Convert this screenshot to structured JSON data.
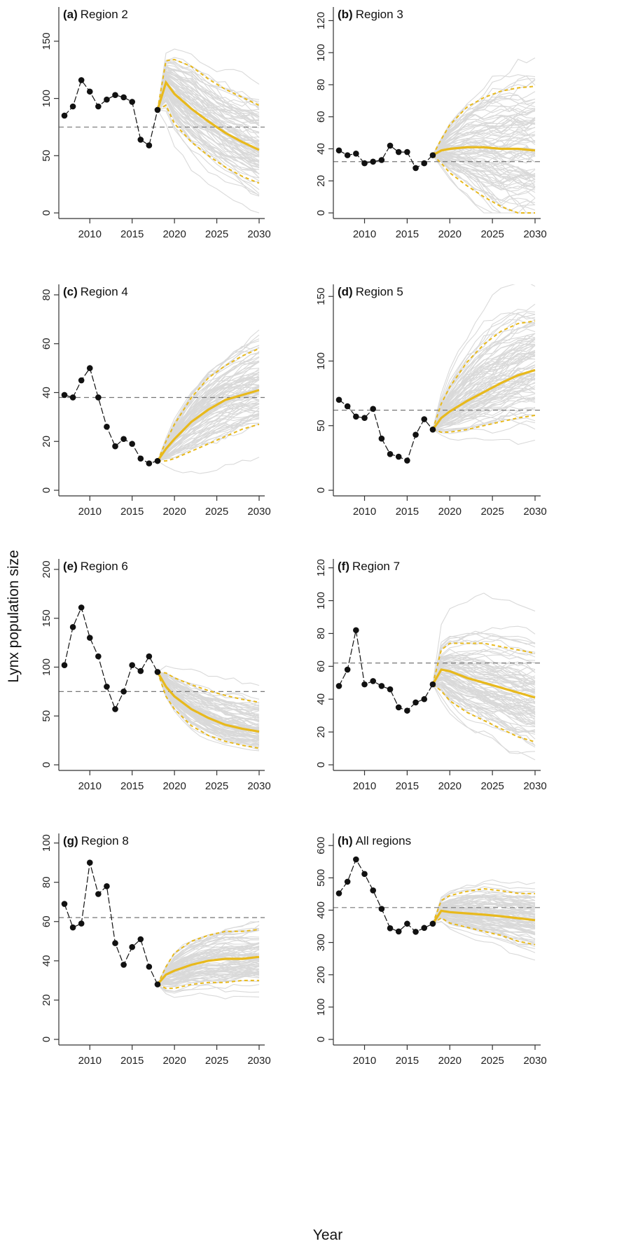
{
  "figure": {
    "ylabel": "Lynx population size",
    "xlabel": "Year"
  },
  "colors": {
    "observed": "#111111",
    "simulation": "#d9d9d9",
    "median": "#e8b91c",
    "threshold": "#777777"
  },
  "chart_data": [
    {
      "type": "line",
      "letter": "(a)",
      "title": "Region 2",
      "xlim": [
        2007,
        2030
      ],
      "xticks": [
        2010,
        2015,
        2020,
        2025,
        2030
      ],
      "ylim": [
        0,
        175
      ],
      "yticks": [
        0,
        50,
        100,
        150
      ],
      "threshold": 75,
      "series": [
        {
          "name": "",
          "x": [
            2007,
            2008,
            2009,
            2010,
            2011,
            2012,
            2013,
            2014,
            2015,
            2016,
            2017,
            2018
          ],
          "values": [
            85,
            93,
            116,
            106,
            93,
            99,
            103,
            101,
            97,
            64,
            59,
            90
          ]
        },
        {
          "name": "",
          "x": [
            2018,
            2019,
            2020,
            2022,
            2024,
            2026,
            2028,
            2030
          ],
          "values": [
            90,
            114,
            104,
            91,
            80,
            70,
            62,
            55
          ]
        },
        {
          "name": "",
          "x": [
            2018,
            2019,
            2020,
            2022,
            2024,
            2026,
            2028,
            2030
          ],
          "values": [
            90,
            133,
            134,
            128,
            117,
            108,
            101,
            94
          ]
        },
        {
          "name": "",
          "x": [
            2018,
            2019,
            2020,
            2022,
            2024,
            2026,
            2028,
            2030
          ],
          "values": [
            90,
            94,
            78,
            62,
            50,
            40,
            32,
            26
          ]
        }
      ]
    },
    {
      "type": "line",
      "letter": "(b)",
      "title": "Region 3",
      "xlim": [
        2007,
        2030
      ],
      "xticks": [
        2010,
        2015,
        2020,
        2025,
        2030
      ],
      "ylim": [
        0,
        125
      ],
      "yticks": [
        0,
        20,
        40,
        60,
        80,
        100,
        120
      ],
      "threshold": 32,
      "series": [
        {
          "name": "",
          "x": [
            2007,
            2008,
            2009,
            2010,
            2011,
            2012,
            2013,
            2014,
            2015,
            2016,
            2017,
            2018
          ],
          "values": [
            39,
            36,
            37,
            31,
            32,
            33,
            42,
            38,
            38,
            28,
            31,
            36
          ]
        },
        {
          "name": "",
          "x": [
            2018,
            2019,
            2020,
            2022,
            2024,
            2026,
            2028,
            2030
          ],
          "values": [
            36,
            39,
            40,
            41,
            41,
            40,
            40,
            39
          ]
        },
        {
          "name": "",
          "x": [
            2018,
            2019,
            2020,
            2022,
            2024,
            2026,
            2028,
            2030
          ],
          "values": [
            36,
            46,
            55,
            66,
            72,
            76,
            78,
            79
          ]
        },
        {
          "name": "",
          "x": [
            2018,
            2019,
            2020,
            2022,
            2024,
            2026,
            2028,
            2030
          ],
          "values": [
            36,
            31,
            25,
            17,
            10,
            4,
            0,
            0
          ]
        }
      ]
    },
    {
      "type": "line",
      "letter": "(c)",
      "title": "Region 4",
      "xlim": [
        2007,
        2030
      ],
      "xticks": [
        2010,
        2015,
        2020,
        2025,
        2030
      ],
      "ylim": [
        0,
        82
      ],
      "yticks": [
        0,
        20,
        40,
        60,
        80
      ],
      "threshold": 38,
      "series": [
        {
          "name": "",
          "x": [
            2007,
            2008,
            2009,
            2010,
            2011,
            2012,
            2013,
            2014,
            2015,
            2016,
            2017,
            2018
          ],
          "values": [
            39,
            38,
            45,
            50,
            38,
            26,
            18,
            21,
            19,
            13,
            11,
            12
          ]
        },
        {
          "name": "",
          "x": [
            2018,
            2019,
            2020,
            2022,
            2024,
            2026,
            2028,
            2030
          ],
          "values": [
            12,
            17,
            21,
            28,
            33,
            37,
            39,
            41
          ]
        },
        {
          "name": "",
          "x": [
            2018,
            2019,
            2020,
            2022,
            2024,
            2026,
            2028,
            2030
          ],
          "values": [
            12,
            20,
            27,
            38,
            46,
            51,
            55,
            58
          ]
        },
        {
          "name": "",
          "x": [
            2018,
            2019,
            2020,
            2022,
            2024,
            2026,
            2028,
            2030
          ],
          "values": [
            12,
            12,
            13,
            16,
            19,
            22,
            25,
            27
          ]
        }
      ]
    },
    {
      "type": "line",
      "letter": "(d)",
      "title": "Region 5",
      "xlim": [
        2007,
        2030
      ],
      "xticks": [
        2010,
        2015,
        2020,
        2025,
        2030
      ],
      "ylim": [
        0,
        155
      ],
      "yticks": [
        0,
        50,
        100,
        150
      ],
      "threshold": 62,
      "series": [
        {
          "name": "",
          "x": [
            2007,
            2008,
            2009,
            2010,
            2011,
            2012,
            2013,
            2014,
            2015,
            2016,
            2017,
            2018
          ],
          "values": [
            70,
            65,
            57,
            56,
            63,
            40,
            28,
            26,
            23,
            43,
            55,
            47
          ]
        },
        {
          "name": "",
          "x": [
            2018,
            2019,
            2020,
            2022,
            2024,
            2026,
            2028,
            2030
          ],
          "values": [
            47,
            56,
            61,
            69,
            76,
            83,
            89,
            93
          ]
        },
        {
          "name": "",
          "x": [
            2018,
            2019,
            2020,
            2022,
            2024,
            2026,
            2028,
            2030
          ],
          "values": [
            47,
            67,
            80,
            99,
            113,
            123,
            129,
            131
          ]
        },
        {
          "name": "",
          "x": [
            2018,
            2019,
            2020,
            2022,
            2024,
            2026,
            2028,
            2030
          ],
          "values": [
            47,
            45,
            45,
            47,
            50,
            53,
            56,
            58
          ]
        }
      ]
    },
    {
      "type": "line",
      "letter": "(e)",
      "title": "Region 6",
      "xlim": [
        2007,
        2030
      ],
      "xticks": [
        2010,
        2015,
        2020,
        2025,
        2030
      ],
      "ylim": [
        0,
        205
      ],
      "yticks": [
        0,
        50,
        100,
        150,
        200
      ],
      "threshold": 75,
      "series": [
        {
          "name": "",
          "x": [
            2007,
            2008,
            2009,
            2010,
            2011,
            2012,
            2013,
            2014,
            2015,
            2016,
            2017,
            2018
          ],
          "values": [
            102,
            141,
            161,
            130,
            111,
            80,
            57,
            75,
            102,
            96,
            111,
            95
          ]
        },
        {
          "name": "",
          "x": [
            2018,
            2019,
            2020,
            2022,
            2024,
            2026,
            2028,
            2030
          ],
          "values": [
            95,
            80,
            70,
            57,
            48,
            41,
            37,
            34
          ]
        },
        {
          "name": "",
          "x": [
            2018,
            2019,
            2020,
            2022,
            2024,
            2026,
            2028,
            2030
          ],
          "values": [
            95,
            94,
            89,
            82,
            76,
            71,
            67,
            64
          ]
        },
        {
          "name": "",
          "x": [
            2018,
            2019,
            2020,
            2022,
            2024,
            2026,
            2028,
            2030
          ],
          "values": [
            95,
            70,
            57,
            40,
            30,
            24,
            20,
            17
          ]
        }
      ]
    },
    {
      "type": "line",
      "letter": "(f)",
      "title": "Region 7",
      "xlim": [
        2007,
        2030
      ],
      "xticks": [
        2010,
        2015,
        2020,
        2025,
        2030
      ],
      "ylim": [
        0,
        122
      ],
      "yticks": [
        0,
        20,
        40,
        60,
        80,
        100,
        120
      ],
      "threshold": 62,
      "series": [
        {
          "name": "",
          "x": [
            2007,
            2008,
            2009,
            2010,
            2011,
            2012,
            2013,
            2014,
            2015,
            2016,
            2017,
            2018
          ],
          "values": [
            48,
            58,
            82,
            49,
            51,
            48,
            46,
            35,
            33,
            38,
            40,
            49
          ]
        },
        {
          "name": "",
          "x": [
            2018,
            2019,
            2020,
            2022,
            2024,
            2026,
            2028,
            2030
          ],
          "values": [
            49,
            58,
            57,
            53,
            50,
            47,
            44,
            41
          ]
        },
        {
          "name": "",
          "x": [
            2018,
            2019,
            2020,
            2022,
            2024,
            2026,
            2028,
            2030
          ],
          "values": [
            49,
            70,
            74,
            74,
            74,
            72,
            70,
            68
          ]
        },
        {
          "name": "",
          "x": [
            2018,
            2019,
            2020,
            2022,
            2024,
            2026,
            2028,
            2030
          ],
          "values": [
            49,
            45,
            39,
            32,
            27,
            22,
            17,
            14
          ]
        }
      ]
    },
    {
      "type": "line",
      "letter": "(g)",
      "title": "Region 8",
      "xlim": [
        2007,
        2030
      ],
      "xticks": [
        2010,
        2015,
        2020,
        2025,
        2030
      ],
      "ylim": [
        0,
        102
      ],
      "yticks": [
        0,
        20,
        40,
        60,
        80,
        100
      ],
      "threshold": 62,
      "series": [
        {
          "name": "",
          "x": [
            2007,
            2008,
            2009,
            2010,
            2011,
            2012,
            2013,
            2014,
            2015,
            2016,
            2017,
            2018
          ],
          "values": [
            69,
            57,
            59,
            90,
            74,
            78,
            49,
            38,
            47,
            51,
            37,
            28
          ]
        },
        {
          "name": "",
          "x": [
            2018,
            2019,
            2020,
            2022,
            2024,
            2026,
            2028,
            2030
          ],
          "values": [
            28,
            33,
            35,
            38,
            40,
            41,
            41,
            42
          ]
        },
        {
          "name": "",
          "x": [
            2018,
            2019,
            2020,
            2022,
            2024,
            2026,
            2028,
            2030
          ],
          "values": [
            28,
            37,
            44,
            50,
            53,
            55,
            55,
            56
          ]
        },
        {
          "name": "",
          "x": [
            2018,
            2019,
            2020,
            2022,
            2024,
            2026,
            2028,
            2030
          ],
          "values": [
            28,
            26,
            26,
            28,
            29,
            29,
            30,
            30
          ]
        }
      ]
    },
    {
      "type": "line",
      "letter": "(h)",
      "title": "All regions",
      "xlim": [
        2007,
        2030
      ],
      "xticks": [
        2010,
        2015,
        2020,
        2025,
        2030
      ],
      "ylim": [
        0,
        620
      ],
      "yticks": [
        0,
        100,
        200,
        300,
        400,
        500,
        600
      ],
      "threshold": 408,
      "series": [
        {
          "name": "",
          "x": [
            2007,
            2008,
            2009,
            2010,
            2011,
            2012,
            2013,
            2014,
            2015,
            2016,
            2017,
            2018
          ],
          "values": [
            452,
            488,
            557,
            512,
            461,
            404,
            344,
            334,
            358,
            333,
            345,
            358
          ]
        },
        {
          "name": "",
          "x": [
            2018,
            2019,
            2020,
            2022,
            2024,
            2026,
            2028,
            2030
          ],
          "values": [
            358,
            398,
            394,
            390,
            386,
            381,
            375,
            369
          ]
        },
        {
          "name": "",
          "x": [
            2018,
            2019,
            2020,
            2022,
            2024,
            2026,
            2028,
            2030
          ],
          "values": [
            358,
            430,
            445,
            458,
            466,
            460,
            452,
            451
          ]
        },
        {
          "name": "",
          "x": [
            2018,
            2019,
            2020,
            2022,
            2024,
            2026,
            2028,
            2030
          ],
          "values": [
            358,
            376,
            360,
            347,
            334,
            322,
            304,
            293
          ]
        }
      ]
    }
  ]
}
